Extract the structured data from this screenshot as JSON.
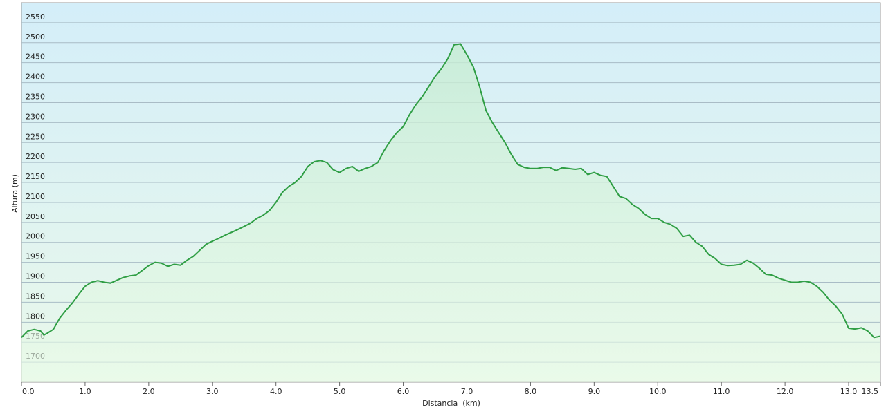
{
  "chart_data": {
    "type": "line",
    "x_label": "Distancia  (km)",
    "y_label": "Altura (m)",
    "x": [
      0.0,
      0.1,
      0.2,
      0.3,
      0.35,
      0.4,
      0.5,
      0.6,
      0.7,
      0.8,
      0.9,
      1.0,
      1.1,
      1.2,
      1.3,
      1.4,
      1.5,
      1.6,
      1.7,
      1.8,
      1.9,
      2.0,
      2.1,
      2.2,
      2.3,
      2.4,
      2.5,
      2.6,
      2.7,
      2.8,
      2.9,
      3.0,
      3.1,
      3.2,
      3.3,
      3.4,
      3.5,
      3.6,
      3.7,
      3.8,
      3.9,
      4.0,
      4.1,
      4.2,
      4.3,
      4.4,
      4.5,
      4.6,
      4.7,
      4.8,
      4.9,
      5.0,
      5.1,
      5.2,
      5.3,
      5.4,
      5.5,
      5.6,
      5.7,
      5.8,
      5.9,
      6.0,
      6.1,
      6.2,
      6.3,
      6.4,
      6.5,
      6.6,
      6.7,
      6.8,
      6.9,
      7.0,
      7.1,
      7.2,
      7.3,
      7.4,
      7.5,
      7.6,
      7.7,
      7.8,
      7.9,
      8.0,
      8.1,
      8.2,
      8.3,
      8.4,
      8.5,
      8.6,
      8.7,
      8.8,
      8.9,
      9.0,
      9.1,
      9.2,
      9.3,
      9.4,
      9.5,
      9.6,
      9.7,
      9.8,
      9.9,
      10.0,
      10.1,
      10.2,
      10.3,
      10.4,
      10.5,
      10.6,
      10.7,
      10.8,
      10.9,
      11.0,
      11.1,
      11.2,
      11.3,
      11.4,
      11.5,
      11.6,
      11.7,
      11.8,
      11.9,
      12.0,
      12.1,
      12.2,
      12.3,
      12.4,
      12.5,
      12.6,
      12.7,
      12.8,
      12.9,
      13.0,
      13.1,
      13.2,
      13.3,
      13.4,
      13.5
    ],
    "series": [
      {
        "color": "#2f9e44",
        "values": [
          1762,
          1778,
          1782,
          1778,
          1768,
          1772,
          1782,
          1810,
          1830,
          1848,
          1870,
          1890,
          1900,
          1904,
          1900,
          1898,
          1905,
          1912,
          1916,
          1918,
          1930,
          1942,
          1950,
          1948,
          1940,
          1945,
          1943,
          1955,
          1965,
          1980,
          1995,
          2003,
          2010,
          2018,
          2025,
          2032,
          2040,
          2048,
          2060,
          2068,
          2080,
          2100,
          2125,
          2140,
          2150,
          2165,
          2190,
          2202,
          2205,
          2200,
          2182,
          2175,
          2185,
          2190,
          2178,
          2185,
          2190,
          2200,
          2230,
          2255,
          2275,
          2290,
          2320,
          2345,
          2365,
          2390,
          2415,
          2435,
          2460,
          2495,
          2497,
          2470,
          2440,
          2390,
          2330,
          2300,
          2275,
          2250,
          2220,
          2195,
          2188,
          2185,
          2185,
          2188,
          2188,
          2180,
          2187,
          2185,
          2183,
          2185,
          2170,
          2175,
          2168,
          2165,
          2140,
          2115,
          2110,
          2095,
          2085,
          2070,
          2060,
          2060,
          2050,
          2045,
          2035,
          2015,
          2018,
          2000,
          1990,
          1970,
          1960,
          1945,
          1942,
          1943,
          1945,
          1955,
          1948,
          1935,
          1920,
          1918,
          1910,
          1905,
          1900,
          1900,
          1903,
          1900,
          1890,
          1875,
          1855,
          1840,
          1820,
          1785,
          1783,
          1786,
          1778,
          1762,
          1765
        ]
      }
    ],
    "xlim": [
      0,
      13.5
    ],
    "ylim": [
      1650,
      2600
    ],
    "xticks": [
      {
        "value": 0,
        "label": "0.0"
      },
      {
        "value": 1,
        "label": "1.0"
      },
      {
        "value": 2,
        "label": "2.0"
      },
      {
        "value": 3,
        "label": "3.0"
      },
      {
        "value": 4,
        "label": "4.0"
      },
      {
        "value": 5,
        "label": "5.0"
      },
      {
        "value": 6,
        "label": "6.0"
      },
      {
        "value": 7,
        "label": "7.0"
      },
      {
        "value": 8,
        "label": "8.0"
      },
      {
        "value": 9,
        "label": "9.0"
      },
      {
        "value": 10,
        "label": "10.0"
      },
      {
        "value": 11,
        "label": "11.0"
      },
      {
        "value": 12,
        "label": "12.0"
      },
      {
        "value": 13,
        "label": "13.0"
      },
      {
        "value": 13.5,
        "label": "13.5"
      }
    ],
    "yticks": [
      1700,
      1750,
      1800,
      1850,
      1900,
      1950,
      2000,
      2050,
      2100,
      2150,
      2200,
      2250,
      2300,
      2350,
      2400,
      2450,
      2500,
      2550
    ],
    "grid": true
  }
}
